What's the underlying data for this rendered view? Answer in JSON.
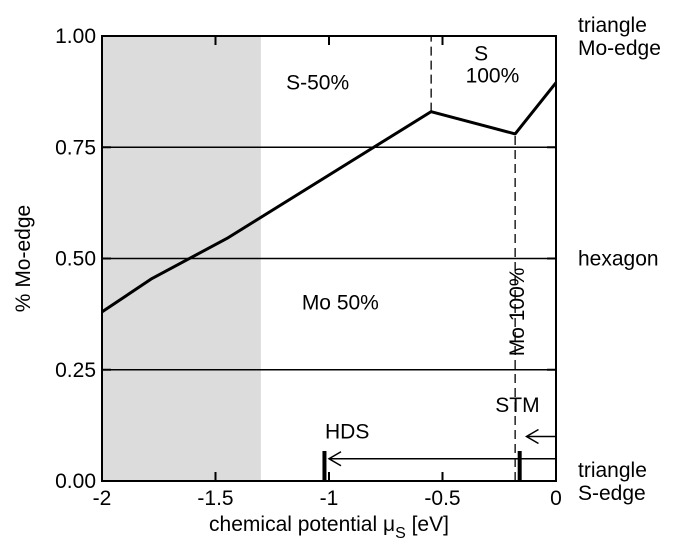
{
  "chart_data": {
    "type": "line",
    "xlabel": "chemical potential μ",
    "xlabel_sub": "S",
    "xlabel_unit": "[eV]",
    "ylabel": "% Mo-edge",
    "xlim": [
      -2,
      0
    ],
    "ylim": [
      0,
      1
    ],
    "x_ticks": [
      -2,
      -1.5,
      -1,
      -0.5,
      0
    ],
    "x_tick_labels": [
      "-2",
      "-1.5",
      "-1",
      "-0.5",
      "0"
    ],
    "y_ticks": [
      0,
      0.25,
      0.5,
      0.75,
      1
    ],
    "y_tick_labels": [
      "0.00",
      "0.25",
      "0.50",
      "0.75",
      "1.00"
    ],
    "horizontal_lines_at": [
      0.25,
      0.5,
      0.75
    ],
    "shaded_region": {
      "x": [
        -2,
        -1.3
      ],
      "color": "#dcdcdc"
    },
    "series": [
      {
        "x": [
          -2.0,
          -1.78,
          -1.45,
          -0.55,
          -0.18,
          0.0
        ],
        "y": [
          0.38,
          0.455,
          0.545,
          0.83,
          0.78,
          0.895
        ]
      }
    ],
    "vertical_dashed_lines": [
      {
        "x": -0.55,
        "y": [
          0.83,
          1.0
        ]
      },
      {
        "x": -0.18,
        "y": [
          0.0,
          0.78
        ]
      }
    ],
    "right_labels": [
      {
        "y": 1.0,
        "lines": [
          "triangle",
          "Mo-edge"
        ]
      },
      {
        "y": 0.5,
        "lines": [
          "hexagon"
        ]
      },
      {
        "y": 0.0,
        "lines": [
          "triangle",
          "S-edge"
        ]
      }
    ],
    "region_labels": [
      {
        "text": "S-50%",
        "x": -1.05,
        "y": 0.88
      },
      {
        "text": "S",
        "x": -0.33,
        "y": 0.945
      },
      {
        "text": "100%",
        "x": -0.28,
        "y": 0.895
      },
      {
        "text": "Mo 50%",
        "x": -0.95,
        "y": 0.385
      },
      {
        "text": "Mo 100%",
        "x": -0.14,
        "y": 0.38,
        "rotated": true
      }
    ],
    "markers": [
      {
        "label": "HDS",
        "label_pos": {
          "x": -0.92,
          "y": 0.095
        },
        "tick_x": -1.02,
        "arrow": {
          "from_x": 0,
          "to_x": -1.0,
          "y": 0.05
        }
      },
      {
        "label": "STM",
        "label_pos": {
          "x": -0.17,
          "y": 0.155
        },
        "tick_x": -0.16,
        "arrow": {
          "from_x": 0,
          "to_x": -0.13,
          "y": 0.1
        }
      }
    ]
  }
}
